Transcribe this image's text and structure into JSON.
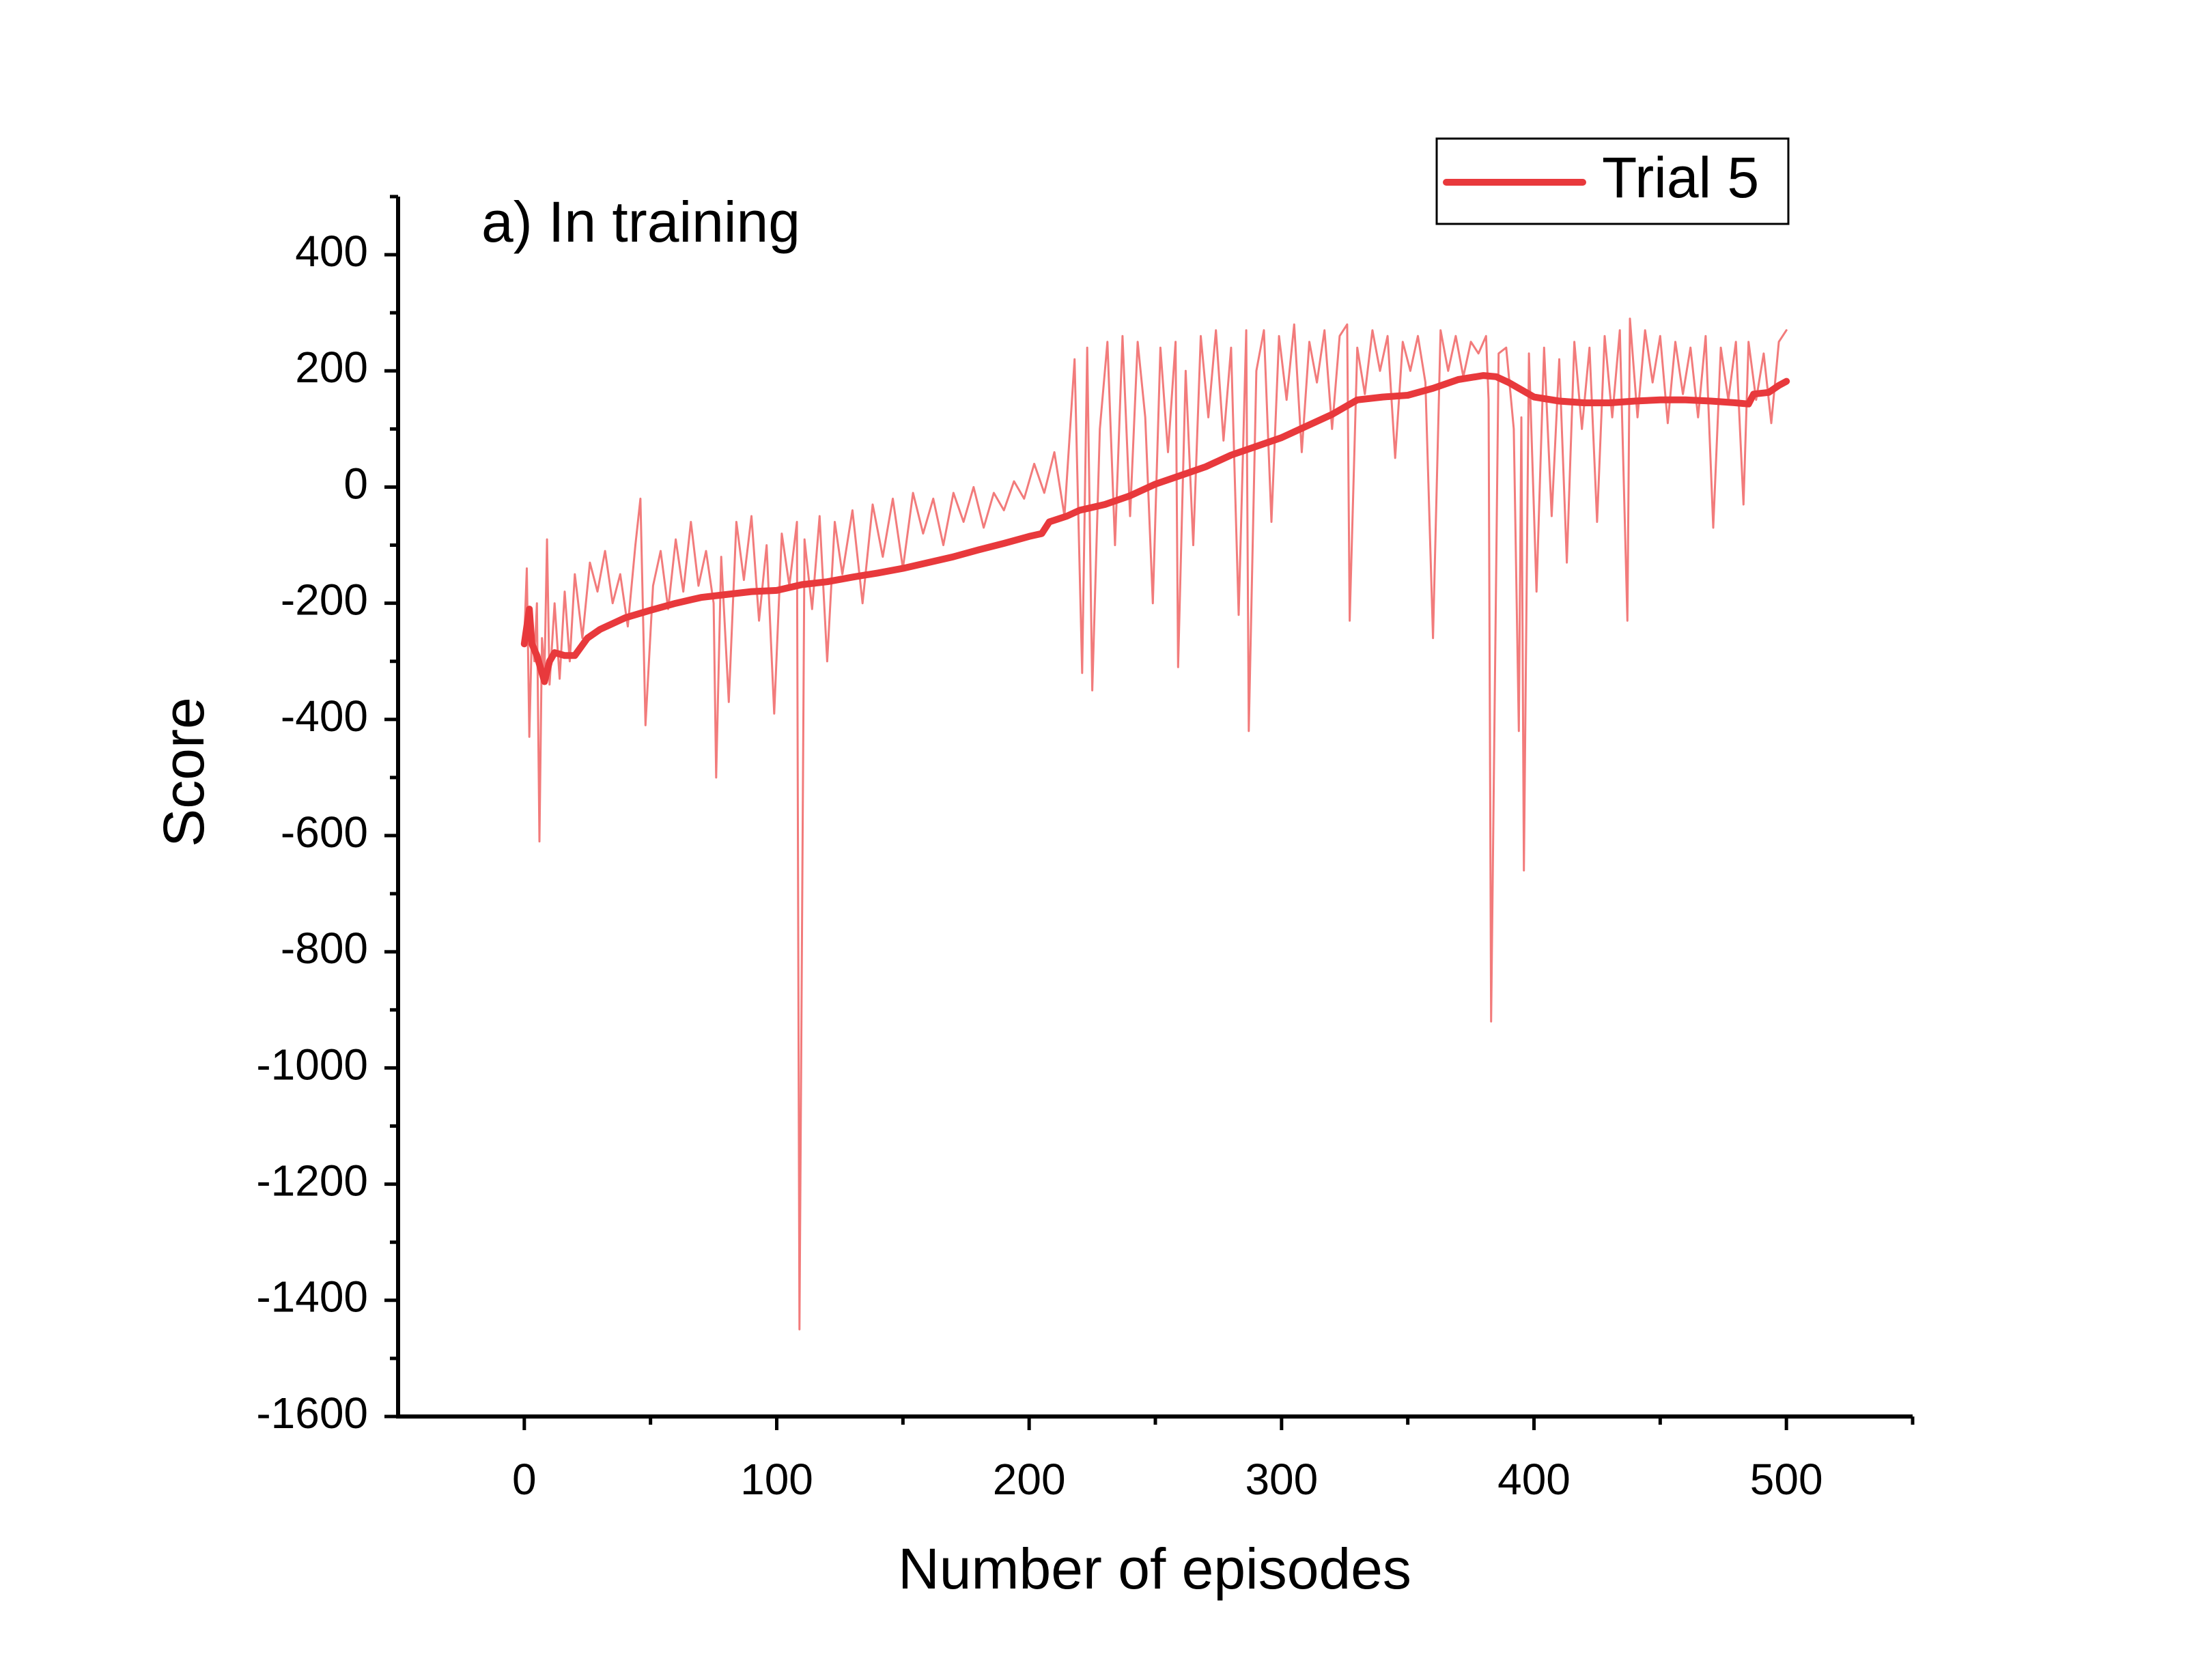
{
  "chart_data": {
    "type": "line",
    "annotation": "a) In training",
    "xlabel": "Number of episodes",
    "ylabel": "Score",
    "xlim": [
      -50,
      550
    ],
    "ylim": [
      -1600,
      500
    ],
    "xticks": [
      0,
      100,
      200,
      300,
      400,
      500
    ],
    "yticks": [
      -1600,
      -1400,
      -1200,
      -1000,
      -800,
      -600,
      -400,
      -200,
      0,
      200,
      400
    ],
    "xminorticks": [
      50,
      150,
      250,
      350,
      450,
      550
    ],
    "yminorticks": [
      -1500,
      -1300,
      -1100,
      -900,
      -700,
      -500,
      -300,
      -100,
      100,
      300,
      500
    ],
    "legend": "upper right",
    "series": [
      {
        "color": "#f27b7b",
        "width": 3,
        "x": [
          0,
          1,
          2,
          3,
          4,
          5,
          6,
          7,
          8,
          9,
          10,
          12,
          14,
          16,
          18,
          20,
          23,
          26,
          29,
          32,
          35,
          38,
          41,
          44,
          46,
          48,
          51,
          54,
          57,
          60,
          63,
          66,
          69,
          72,
          75,
          76,
          78,
          81,
          84,
          87,
          90,
          93,
          96,
          99,
          102,
          105,
          108,
          109,
          111,
          114,
          117,
          120,
          123,
          126,
          130,
          134,
          138,
          142,
          146,
          150,
          154,
          158,
          162,
          166,
          170,
          174,
          178,
          182,
          186,
          190,
          194,
          198,
          202,
          206,
          210,
          214,
          218,
          221,
          223,
          225,
          228,
          231,
          234,
          237,
          240,
          243,
          246,
          249,
          252,
          255,
          258,
          259,
          262,
          265,
          268,
          271,
          274,
          277,
          280,
          283,
          286,
          287,
          290,
          293,
          296,
          299,
          302,
          305,
          308,
          311,
          314,
          317,
          320,
          323,
          326,
          327,
          330,
          333,
          336,
          339,
          342,
          345,
          348,
          351,
          354,
          357,
          360,
          363,
          366,
          369,
          372,
          375,
          378,
          381,
          382,
          383,
          386,
          389,
          392,
          394,
          395,
          396,
          398,
          401,
          404,
          407,
          410,
          413,
          416,
          419,
          422,
          425,
          428,
          431,
          434,
          437,
          438,
          441,
          444,
          447,
          450,
          453,
          456,
          459,
          462,
          465,
          468,
          471,
          474,
          477,
          480,
          483,
          485,
          488,
          491,
          494,
          497,
          500
        ],
        "values": [
          -260,
          -140,
          -430,
          -250,
          -300,
          -200,
          -610,
          -260,
          -320,
          -90,
          -340,
          -200,
          -330,
          -180,
          -300,
          -150,
          -260,
          -130,
          -180,
          -110,
          -200,
          -150,
          -240,
          -100,
          -20,
          -410,
          -170,
          -110,
          -210,
          -90,
          -180,
          -60,
          -170,
          -110,
          -200,
          -500,
          -120,
          -370,
          -60,
          -160,
          -50,
          -230,
          -100,
          -390,
          -80,
          -170,
          -60,
          -1450,
          -90,
          -210,
          -50,
          -300,
          -60,
          -150,
          -40,
          -200,
          -30,
          -120,
          -20,
          -140,
          -10,
          -80,
          -20,
          -100,
          -10,
          -60,
          0,
          -70,
          -10,
          -40,
          10,
          -20,
          40,
          -10,
          60,
          -50,
          220,
          -320,
          240,
          -350,
          100,
          250,
          -100,
          260,
          -50,
          250,
          120,
          -200,
          240,
          60,
          250,
          -310,
          200,
          -100,
          260,
          120,
          270,
          80,
          240,
          -220,
          270,
          -420,
          200,
          270,
          -60,
          260,
          150,
          280,
          60,
          250,
          180,
          270,
          100,
          260,
          280,
          -230,
          240,
          160,
          270,
          200,
          260,
          50,
          250,
          200,
          260,
          180,
          -260,
          270,
          200,
          260,
          190,
          250,
          230,
          260,
          150,
          -920,
          230,
          240,
          100,
          -420,
          120,
          -660,
          230,
          -180,
          240,
          -50,
          220,
          -130,
          250,
          100,
          240,
          -60,
          260,
          120,
          270,
          -230,
          290,
          120,
          270,
          180,
          260,
          110,
          250,
          160,
          240,
          120,
          260,
          -70,
          240,
          150,
          250,
          -30,
          250,
          150,
          230,
          110,
          250,
          270
        ]
      },
      {
        "name": "Trial 5",
        "color": "#e8393c",
        "width": 10,
        "x": [
          0,
          2,
          3,
          5,
          8,
          10,
          12,
          16,
          20,
          25,
          30,
          40,
          50,
          60,
          70,
          80,
          90,
          100,
          110,
          120,
          130,
          140,
          150,
          160,
          170,
          180,
          190,
          200,
          205,
          208,
          215,
          220,
          230,
          240,
          250,
          260,
          270,
          280,
          290,
          300,
          310,
          320,
          330,
          340,
          350,
          360,
          370,
          380,
          385,
          390,
          400,
          410,
          420,
          430,
          440,
          450,
          460,
          470,
          480,
          485,
          487,
          493,
          497,
          500
        ],
        "values": [
          -270,
          -210,
          -270,
          -290,
          -335,
          -300,
          -285,
          -290,
          -290,
          -260,
          -245,
          -225,
          -212,
          -200,
          -190,
          -185,
          -180,
          -178,
          -168,
          -163,
          -155,
          -148,
          -140,
          -130,
          -120,
          -108,
          -97,
          -85,
          -80,
          -60,
          -50,
          -40,
          -30,
          -15,
          5,
          20,
          35,
          55,
          70,
          85,
          105,
          125,
          150,
          155,
          158,
          170,
          185,
          192,
          190,
          180,
          155,
          148,
          145,
          145,
          148,
          150,
          150,
          148,
          145,
          143,
          160,
          163,
          175,
          182
        ]
      }
    ]
  }
}
